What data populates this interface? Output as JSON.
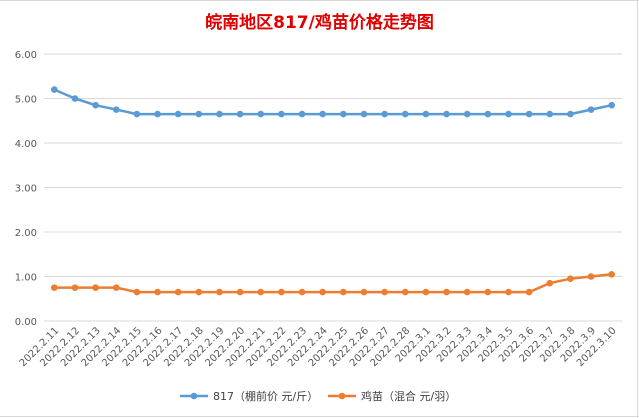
{
  "chart_data": {
    "type": "line",
    "title": "皖南地区817/鸡苗价格走势图",
    "xlabel": "",
    "ylabel": "",
    "ylim": [
      0,
      6
    ],
    "yticks": [
      "0.00",
      "1.00",
      "2.00",
      "3.00",
      "4.00",
      "5.00",
      "6.00"
    ],
    "grid": true,
    "legend_position": "bottom",
    "categories": [
      "2022.2.11",
      "2022.2.12",
      "2022.2.13",
      "2022.2.14",
      "2022.2.15",
      "2022.2.16",
      "2022.2.17",
      "2022.2.18",
      "2022.2.19",
      "2022.2.20",
      "2022.2.21",
      "2022.2.22",
      "2022.2.23",
      "2022.2.24",
      "2022.2.25",
      "2022.2.26",
      "2022.2.27",
      "2022.2.28",
      "2022.3.1",
      "2022.3.2",
      "2022.3.3",
      "2022.3.4",
      "2022.3.5",
      "2022.3.6",
      "2022.3.7",
      "2022.3.8",
      "2022.3.9",
      "2022.3.10"
    ],
    "series": [
      {
        "name": "817（棚前价 元/斤）",
        "color": "#5b9bd5",
        "values": [
          5.2,
          5.0,
          4.85,
          4.75,
          4.65,
          4.65,
          4.65,
          4.65,
          4.65,
          4.65,
          4.65,
          4.65,
          4.65,
          4.65,
          4.65,
          4.65,
          4.65,
          4.65,
          4.65,
          4.65,
          4.65,
          4.65,
          4.65,
          4.65,
          4.65,
          4.65,
          4.75,
          4.85
        ]
      },
      {
        "name": "鸡苗（混合 元/羽）",
        "color": "#ed7d31",
        "values": [
          0.75,
          0.75,
          0.75,
          0.75,
          0.65,
          0.65,
          0.65,
          0.65,
          0.65,
          0.65,
          0.65,
          0.65,
          0.65,
          0.65,
          0.65,
          0.65,
          0.65,
          0.65,
          0.65,
          0.65,
          0.65,
          0.65,
          0.65,
          0.65,
          0.85,
          0.95,
          1.0,
          1.05
        ]
      }
    ]
  }
}
